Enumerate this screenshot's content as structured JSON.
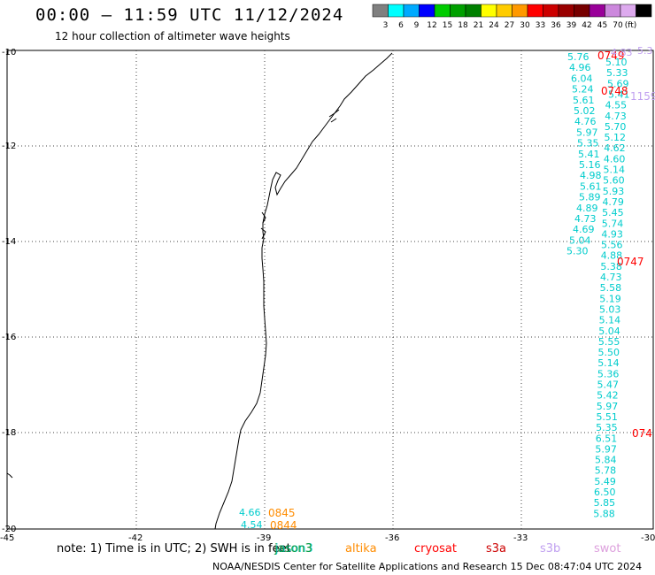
{
  "title": "00:00 – 11:59 UTC 11/12/2024",
  "subtitle": "12 hour collection of altimeter wave heights",
  "scale": {
    "labels": [
      "3",
      "6",
      "9",
      "12",
      "15",
      "18",
      "21",
      "24",
      "27",
      "30",
      "33",
      "36",
      "39",
      "42",
      "45",
      "70",
      "(ft)"
    ],
    "colors": [
      "#808080",
      "#00ffff",
      "#00aaff",
      "#0000ff",
      "#00cc00",
      "#00a000",
      "#008000",
      "#ffff00",
      "#ffcc00",
      "#ff9900",
      "#ff0000",
      "#cc0000",
      "#990000",
      "#770000",
      "#990099",
      "#cc88dd",
      "#ddaaee",
      "#000000"
    ]
  },
  "axes": {
    "lon_ticks": [
      "-45",
      "-42",
      "-39",
      "-36",
      "-33",
      "-30"
    ],
    "lat_ticks": [
      "-10",
      "-12",
      "-14",
      "-16",
      "-18",
      "-20"
    ]
  },
  "satellites": [
    {
      "name": "jason3",
      "color": "#00cccc"
    },
    {
      "name": "altika",
      "color": "#ff8c00"
    },
    {
      "name": "cryosat",
      "color": "#ff0000"
    },
    {
      "name": "s3a",
      "color": "#cc0000"
    },
    {
      "name": "s3b",
      "color": "#c0a0f0"
    },
    {
      "name": "swot",
      "color": "#dda0dd"
    }
  ],
  "overlap_text": "jason3",
  "note": "note: 1) Time is in UTC; 2) SWH is in feet",
  "footer": "NOAA/NESDIS Center for Satellite Applications and Research    15 Dec 08:47:04 UTC 2024",
  "track_main": [
    "5.76",
    "4.96",
    "6.04",
    "5.24",
    "5.61",
    "5.02",
    "4.76",
    "5.97",
    "5.35",
    "5.41",
    "5.16",
    "4.98",
    "5.61",
    "5.89",
    "4.89",
    "4.73",
    "4.69",
    "5.04",
    "5.30"
  ],
  "track_main_b": [
    "5.10",
    "5.33",
    "5.69",
    "5.41",
    "4.55",
    "4.73",
    "5.70",
    "5.12",
    "4.62",
    "4.60",
    "5.14",
    "5.60",
    "5.93",
    "4.79",
    "5.45",
    "5.74",
    "4.93",
    "5.56",
    "4.88",
    "5.38",
    "4.73",
    "5.58",
    "5.19",
    "5.03",
    "5.14",
    "5.04",
    "5.55",
    "5.50",
    "5.14",
    "5.36",
    "5.47",
    "5.42",
    "5.97",
    "5.51",
    "5.35",
    "6.51",
    "5.97",
    "5.84",
    "5.78",
    "5.49",
    "6.50",
    "5.85",
    "5.88"
  ],
  "times": {
    "t1": "0749",
    "t2": "0748",
    "t3": "0747",
    "t4": "074",
    "t5": "0845",
    "t6": "0844",
    "s3b_a": "4.83",
    "s3b_b": "5.3",
    "s3b_c": "1159"
  },
  "left_vals": {
    "v1": "4.66",
    "v2": "4.54"
  }
}
